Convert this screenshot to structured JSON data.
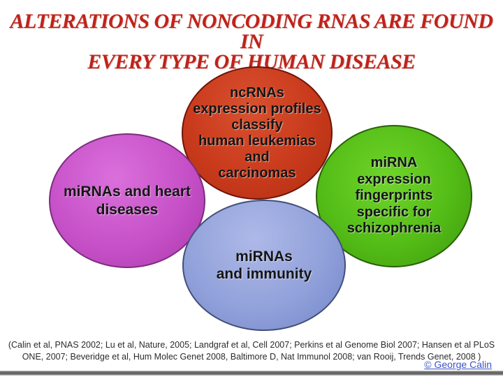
{
  "slide": {
    "title": {
      "line1": "ALTERATIONS OF NONCODING RNAS ARE FOUND IN",
      "line2": "EVERY TYPE OF HUMAN DISEASE",
      "color": "#bf231b"
    },
    "ellipses": [
      {
        "id": "leukemias-carcinomas",
        "fill": "#c93a1c",
        "border": "#6e1408",
        "lines": [
          "ncRNAs",
          "expression profiles",
          "classify",
          "human leukemias",
          "and",
          "carcinomas"
        ]
      },
      {
        "id": "heart-diseases",
        "fill": "#c751c8",
        "border": "#7c2d7e",
        "lines": [
          "miRNAs and heart",
          "diseases"
        ]
      },
      {
        "id": "schizophrenia",
        "fill": "#53bc16",
        "border": "#285f08",
        "lines": [
          "miRNA",
          "expression",
          "fingerprints",
          "specific for",
          "schizophrenia"
        ]
      },
      {
        "id": "immunity",
        "fill": "#91a1da",
        "border": "#444f79",
        "lines": [
          "miRNAs",
          "and immunity"
        ]
      }
    ],
    "citation": {
      "line1": "(Calin et al, PNAS 2002; Lu et al, Nature, 2005; Landgraf et al, Cell 2007; Perkins et al Genome Biol 2007; Hansen et al PLoS",
      "line2": "ONE, 2007; Beveridge et al, Hum Molec Genet 2008, Baltimore D, Nat Immunol 2008; van Rooij, Trends Genet, 2008 )"
    },
    "credit": {
      "label": "© George Calin",
      "color": "#3952cd"
    }
  }
}
